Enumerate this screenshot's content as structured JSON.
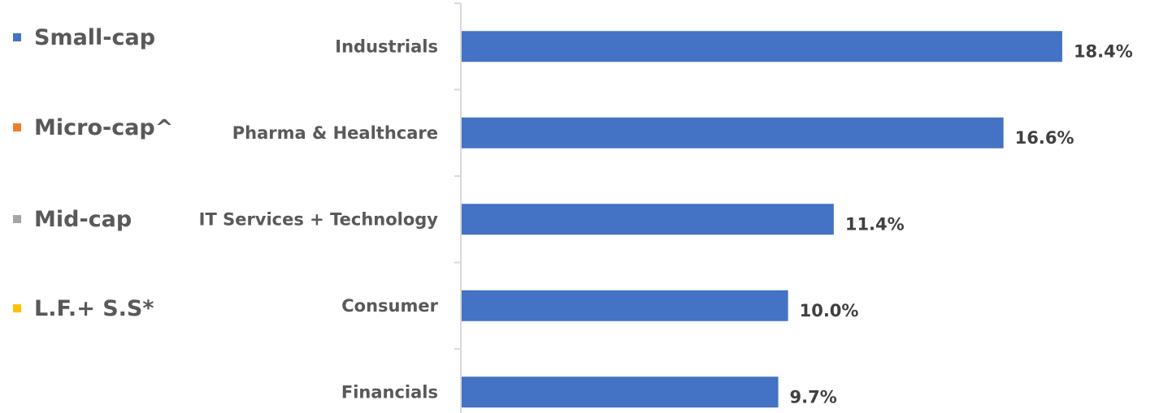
{
  "legend": {
    "items": [
      {
        "label": "Small-cap",
        "color": "#4472c4"
      },
      {
        "label": "Micro-cap^",
        "color": "#ed7d31"
      },
      {
        "label": "Mid-cap",
        "color": "#a5a5a5"
      },
      {
        "label": "L.F.+ S.S*",
        "color": "#ffc000"
      }
    ]
  },
  "chart_data": {
    "type": "bar",
    "orientation": "horizontal",
    "categories": [
      "Industrials",
      "Pharma & Healthcare",
      "IT Services + Technology",
      "Consumer",
      "Financials"
    ],
    "values": [
      18.4,
      16.6,
      11.4,
      10.0,
      9.7
    ],
    "value_labels": [
      "18.4%",
      "16.6%",
      "11.4%",
      "10.0%",
      "9.7%"
    ],
    "bar_color": "#4472c4",
    "xlim": [
      0,
      18.7
    ],
    "grid": false
  }
}
